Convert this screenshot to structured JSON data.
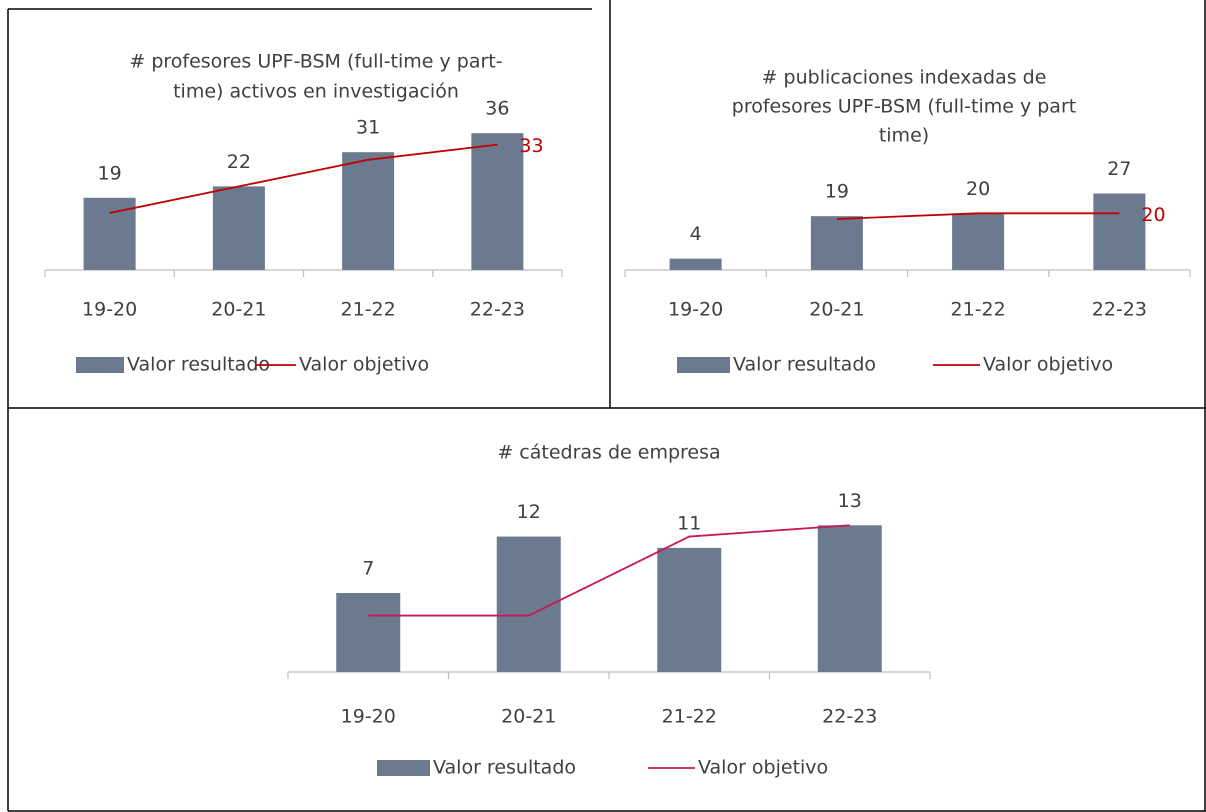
{
  "chart_data": [
    {
      "type": "combo",
      "title": [
        "# profesores UPF-BSM (full-time y part-",
        "time) activos en investigación"
      ],
      "categories": [
        "19-20",
        "20-21",
        "21-22",
        "22-23"
      ],
      "ylim": [
        0,
        40
      ],
      "series": [
        {
          "name": "Valor resultado",
          "type": "bar",
          "color": "#6b7a8f",
          "values": [
            19,
            22,
            31,
            36
          ],
          "data_labels": "all"
        },
        {
          "name": "Valor objetivo",
          "type": "line",
          "color": "#c00000",
          "values": [
            15,
            22,
            29,
            33
          ],
          "data_labels": "last"
        }
      ]
    },
    {
      "type": "combo",
      "title": [
        "# publicaciones indexadas de",
        "profesores UPF-BSM (full-time y part",
        "time)"
      ],
      "categories": [
        "19-20",
        "20-21",
        "21-22",
        "22-23"
      ],
      "ylim": [
        0,
        30
      ],
      "series": [
        {
          "name": "Valor resultado",
          "type": "bar",
          "color": "#6b7a8f",
          "values": [
            4,
            19,
            20,
            27
          ],
          "data_labels": "all"
        },
        {
          "name": "Valor objetivo",
          "type": "line",
          "color": "#c00000",
          "values": [
            null,
            18,
            20,
            20
          ],
          "data_labels": "last"
        }
      ]
    },
    {
      "type": "combo",
      "title": [
        "# cátedras de empresa"
      ],
      "categories": [
        "19-20",
        "20-21",
        "21-22",
        "22-23"
      ],
      "ylim": [
        0,
        14
      ],
      "series": [
        {
          "name": "Valor resultado",
          "type": "bar",
          "color": "#6b7a8f",
          "values": [
            7,
            12,
            11,
            13
          ],
          "data_labels": "all"
        },
        {
          "name": "Valor objetivo",
          "type": "line",
          "color": "#c8185a",
          "values": [
            5,
            5,
            12,
            13
          ],
          "data_labels": "none"
        }
      ]
    }
  ]
}
